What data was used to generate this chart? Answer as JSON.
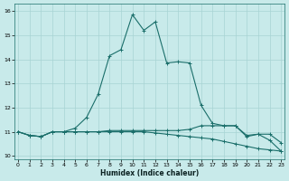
{
  "xlabel": "Humidex (Indice chaleur)",
  "xlim": [
    -0.3,
    23.3
  ],
  "ylim": [
    9.85,
    16.3
  ],
  "yticks": [
    10,
    11,
    12,
    13,
    14,
    15,
    16
  ],
  "xticks": [
    0,
    1,
    2,
    3,
    4,
    5,
    6,
    7,
    8,
    9,
    10,
    11,
    12,
    13,
    14,
    15,
    16,
    17,
    18,
    19,
    20,
    21,
    22,
    23
  ],
  "bg_color": "#c8eaea",
  "grid_color": "#a8d4d4",
  "line_color": "#1a6e6a",
  "curve1_x": [
    0,
    1,
    2,
    3,
    4,
    5,
    6,
    7,
    8,
    9,
    10,
    11,
    12,
    13,
    14,
    15,
    16,
    17,
    18,
    19,
    20,
    21,
    22,
    23
  ],
  "curve1_y": [
    11.0,
    10.85,
    10.8,
    11.0,
    11.0,
    11.15,
    11.6,
    12.55,
    14.15,
    14.4,
    15.85,
    15.2,
    15.55,
    13.85,
    13.9,
    13.85,
    12.1,
    11.35,
    11.25,
    11.25,
    10.8,
    10.9,
    10.65,
    10.2
  ],
  "curve2_x": [
    0,
    1,
    2,
    3,
    4,
    5,
    6,
    7,
    8,
    9,
    10,
    11,
    12,
    13,
    14,
    15,
    16,
    17,
    18,
    19,
    20,
    21,
    22,
    23
  ],
  "curve2_y": [
    11.0,
    10.85,
    10.8,
    11.0,
    11.0,
    11.0,
    11.0,
    11.0,
    11.05,
    11.05,
    11.05,
    11.05,
    11.05,
    11.05,
    11.05,
    11.1,
    11.25,
    11.25,
    11.25,
    11.25,
    10.85,
    10.9,
    10.9,
    10.55
  ],
  "curve3_x": [
    0,
    1,
    2,
    3,
    4,
    5,
    6,
    7,
    8,
    9,
    10,
    11,
    12,
    13,
    14,
    15,
    16,
    17,
    18,
    19,
    20,
    21,
    22,
    23
  ],
  "curve3_y": [
    11.0,
    10.85,
    10.8,
    11.0,
    11.0,
    11.0,
    11.0,
    11.0,
    11.0,
    11.0,
    11.0,
    11.0,
    10.95,
    10.9,
    10.85,
    10.8,
    10.75,
    10.7,
    10.6,
    10.5,
    10.4,
    10.3,
    10.25,
    10.2
  ],
  "linewidth": 0.8,
  "markersize": 2.5,
  "xlabel_fontsize": 5.5,
  "tick_fontsize": 4.5
}
